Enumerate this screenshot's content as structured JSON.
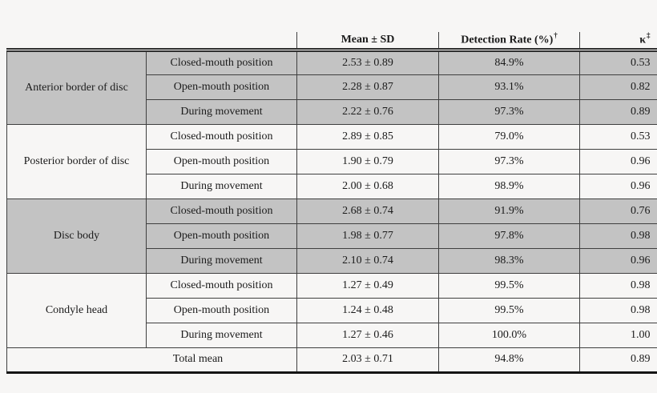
{
  "page": {
    "background": "#f7f6f5"
  },
  "table": {
    "headers": {
      "mean": "Mean ± SD",
      "rate": "Detection Rate (%)",
      "rate_footnote_mark": "†",
      "kappa": "κ",
      "kappa_footnote_mark": "‡"
    },
    "groups": [
      {
        "label": "Anterior border of disc",
        "shaded": true,
        "rows": [
          {
            "position": "Closed-mouth position",
            "mean": "2.53 ± 0.89",
            "rate": "84.9%",
            "kappa": "0.53"
          },
          {
            "position": "Open-mouth position",
            "mean": "2.28 ± 0.87",
            "rate": "93.1%",
            "kappa": "0.82"
          },
          {
            "position": "During movement",
            "mean": "2.22 ± 0.76",
            "rate": "97.3%",
            "kappa": "0.89"
          }
        ]
      },
      {
        "label": "Posterior border of disc",
        "shaded": false,
        "rows": [
          {
            "position": "Closed-mouth position",
            "mean": "2.89 ± 0.85",
            "rate": "79.0%",
            "kappa": "0.53"
          },
          {
            "position": "Open-mouth position",
            "mean": "1.90 ± 0.79",
            "rate": "97.3%",
            "kappa": "0.96"
          },
          {
            "position": "During movement",
            "mean": "2.00 ± 0.68",
            "rate": "98.9%",
            "kappa": "0.96"
          }
        ]
      },
      {
        "label": "Disc body",
        "shaded": true,
        "rows": [
          {
            "position": "Closed-mouth position",
            "mean": "2.68 ± 0.74",
            "rate": "91.9%",
            "kappa": "0.76"
          },
          {
            "position": "Open-mouth position",
            "mean": "1.98 ± 0.77",
            "rate": "97.8%",
            "kappa": "0.98"
          },
          {
            "position": "During movement",
            "mean": "2.10 ± 0.74",
            "rate": "98.3%",
            "kappa": "0.96"
          }
        ]
      },
      {
        "label": "Condyle head",
        "shaded": false,
        "rows": [
          {
            "position": "Closed-mouth position",
            "mean": "1.27 ± 0.49",
            "rate": "99.5%",
            "kappa": "0.98"
          },
          {
            "position": "Open-mouth position",
            "mean": "1.24 ± 0.48",
            "rate": "99.5%",
            "kappa": "0.98"
          },
          {
            "position": "During movement",
            "mean": "1.27 ± 0.46",
            "rate": "100.0%",
            "kappa": "1.00"
          }
        ]
      }
    ],
    "total_row": {
      "label": "Total mean",
      "mean": "2.03 ± 0.71",
      "rate": "94.8%",
      "kappa": "0.89"
    },
    "colors": {
      "shaded_row": "#c3c3c3",
      "grid_line": "#3f3f3f",
      "text": "#1b1b1b",
      "background": "#f7f6f5"
    }
  }
}
